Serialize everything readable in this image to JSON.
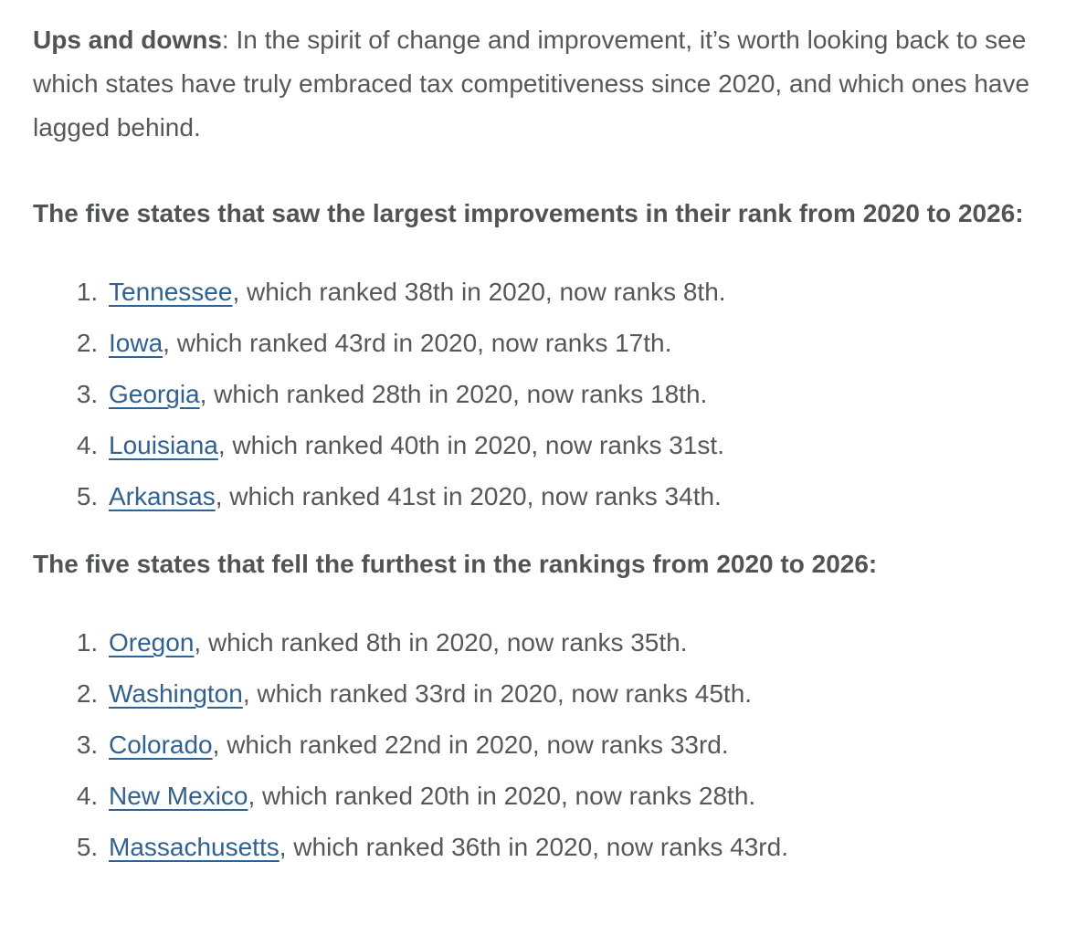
{
  "colors": {
    "body_text": "#55585a",
    "bold_text": "#515456",
    "link": "#33618f",
    "background": "#ffffff"
  },
  "intro": {
    "lead_bold": "Ups and downs",
    "lead_rest": ": In the spirit of change and improvement, it’s worth looking back to see which states have truly embraced tax competitiveness since 2020, and which ones have lagged behind."
  },
  "sections": [
    {
      "heading": "The five states that saw the largest improvements in their rank from 2020 to 2026:",
      "items": [
        {
          "state": "Tennessee",
          "rest": ", which ranked 38th in 2020, now ranks 8th."
        },
        {
          "state": "Iowa",
          "rest": ", which ranked 43rd in 2020, now ranks 17th."
        },
        {
          "state": "Georgia",
          "rest": ", which ranked 28th in 2020, now ranks 18th."
        },
        {
          "state": "Louisiana",
          "rest": ", which ranked 40th in 2020, now ranks 31st."
        },
        {
          "state": "Arkansas",
          "rest": ", which ranked 41st in 2020, now ranks 34th."
        }
      ]
    },
    {
      "heading": "The five states that fell the furthest in the rankings from 2020 to 2026:",
      "items": [
        {
          "state": "Oregon",
          "rest": ", which ranked 8th in 2020, now ranks 35th."
        },
        {
          "state": "Washington",
          "rest": ", which ranked 33rd in 2020, now ranks 45th."
        },
        {
          "state": "Colorado",
          "rest": ", which ranked 22nd in 2020, now ranks 33rd."
        },
        {
          "state": "New Mexico",
          "rest": ", which ranked 20th in 2020, now ranks 28th."
        },
        {
          "state": "Massachusetts",
          "rest": ", which ranked 36th in 2020, now ranks 43rd."
        }
      ]
    }
  ]
}
